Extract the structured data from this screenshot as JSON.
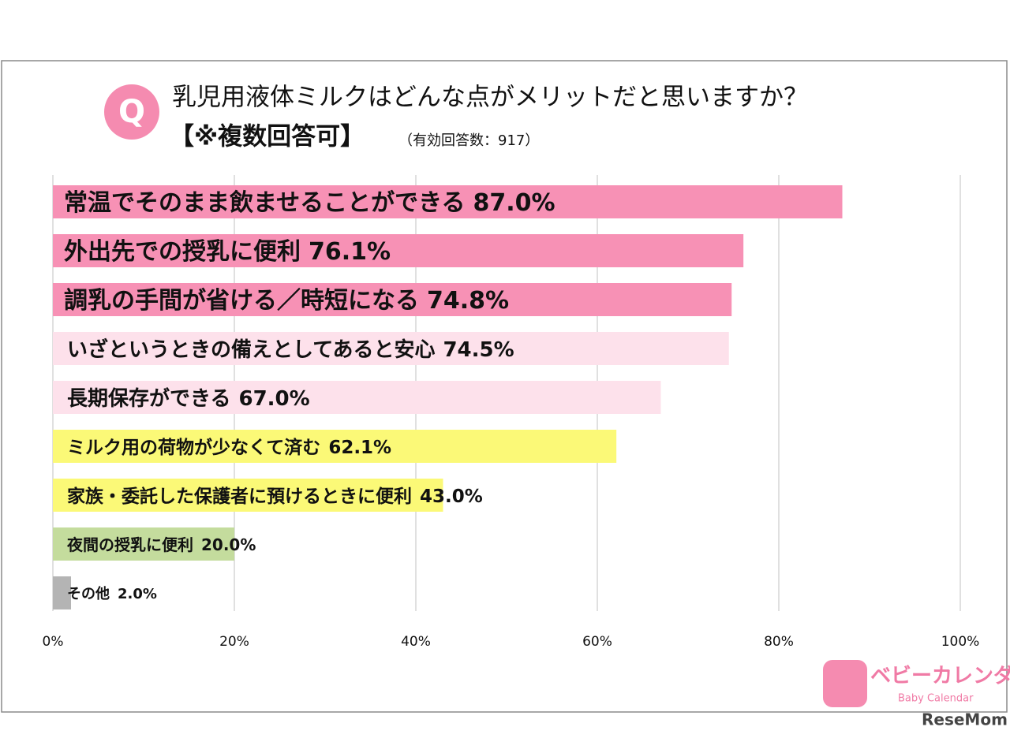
{
  "chart_data": {
    "type": "bar",
    "orientation": "horizontal",
    "badge": "Q",
    "title": "乳児用液体ミルクはどんな点がメリットだと思いますか？",
    "subtitle": "【※複数回答可】",
    "note": "（有効回答数：917）",
    "categories": [
      "常温でそのまま飲ませることができる",
      "外出先での授乳に便利",
      "調乳の手間が省ける／時短になる",
      "いざというときの備えとしてあると安心",
      "長期保存ができる",
      "ミルク用の荷物が少なくて済む",
      "家族・委託した保護者に預けるときに便利",
      "夜間の授乳に便利",
      "その他"
    ],
    "values": [
      87.0,
      76.1,
      74.8,
      74.5,
      67.0,
      62.1,
      43.0,
      20.0,
      2.0
    ],
    "value_labels": [
      "87.0%",
      "76.1%",
      "74.8%",
      "74.5%",
      "67.0%",
      "62.1%",
      "43.0%",
      "20.0%",
      "2.0%"
    ],
    "colors": [
      "#f791b5",
      "#f791b5",
      "#f791b5",
      "#fde1eb",
      "#fde1eb",
      "#fbf977",
      "#fbf977",
      "#c4dc9d",
      "#b4b4b4"
    ],
    "xlim": [
      0,
      100
    ],
    "xticks": [
      {
        "value": 0,
        "label": "0%"
      },
      {
        "value": 20,
        "label": "20%"
      },
      {
        "value": 40,
        "label": "40%"
      },
      {
        "value": 60,
        "label": "60%"
      },
      {
        "value": 80,
        "label": "80%"
      },
      {
        "value": 100,
        "label": "100%"
      }
    ],
    "grid": true,
    "logo": [
      "ベビーカレンダー",
      "Baby Calendar"
    ],
    "watermark": "ReseMom"
  }
}
